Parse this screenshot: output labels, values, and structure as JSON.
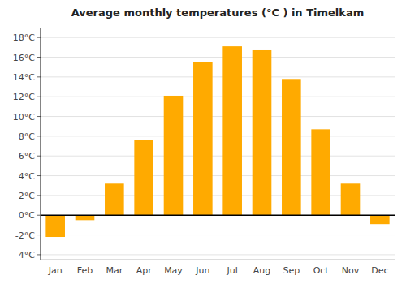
{
  "chart_data": {
    "type": "bar",
    "title": "Average monthly temperatures (°C ) in Timelkam",
    "categories": [
      "Jan",
      "Feb",
      "Mar",
      "Apr",
      "May",
      "Jun",
      "Jul",
      "Aug",
      "Sep",
      "Oct",
      "Nov",
      "Dec"
    ],
    "values": [
      -2.2,
      -0.5,
      3.2,
      7.6,
      12.1,
      15.5,
      17.1,
      16.7,
      13.8,
      8.7,
      3.2,
      -0.9
    ],
    "color": "#FFAA00",
    "ylim": [
      -4.5,
      19
    ],
    "yticks": [
      {
        "value": -4,
        "label": "-4°C"
      },
      {
        "value": -2,
        "label": "-2°C"
      },
      {
        "value": 0,
        "label": "0°C"
      },
      {
        "value": 2,
        "label": "2°C"
      },
      {
        "value": 4,
        "label": "4°C"
      },
      {
        "value": 6,
        "label": "6°C"
      },
      {
        "value": 8,
        "label": "8°C"
      },
      {
        "value": 10,
        "label": "10°C"
      },
      {
        "value": 12,
        "label": "12°C"
      },
      {
        "value": 14,
        "label": "14°C"
      },
      {
        "value": 16,
        "label": "16°C"
      },
      {
        "value": 18,
        "label": "18°C"
      }
    ],
    "grid": true
  }
}
